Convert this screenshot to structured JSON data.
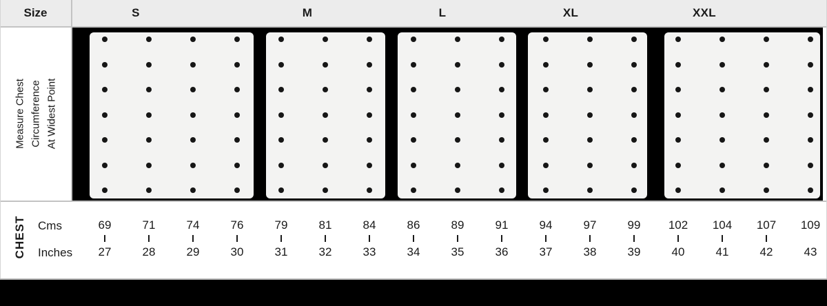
{
  "header": {
    "size_column_label": "Size",
    "size_labels": [
      "S",
      "M",
      "L",
      "XL",
      "XXL"
    ]
  },
  "measurement_note": {
    "lines": [
      "Measure Chest",
      "Circumference",
      "At Widest Point"
    ]
  },
  "chest_table": {
    "row_label": "CHEST",
    "unit_rows": [
      "Cms",
      "Inches"
    ],
    "sizes": [
      {
        "size": "S",
        "values": [
          {
            "cms": "69",
            "inches": "27"
          },
          {
            "cms": "71",
            "inches": "28"
          },
          {
            "cms": "74",
            "inches": "29"
          },
          {
            "cms": "76",
            "inches": "30"
          }
        ]
      },
      {
        "size": "M",
        "values": [
          {
            "cms": "79",
            "inches": "31"
          },
          {
            "cms": "81",
            "inches": "32"
          },
          {
            "cms": "84",
            "inches": "33"
          }
        ]
      },
      {
        "size": "L",
        "values": [
          {
            "cms": "86",
            "inches": "34"
          },
          {
            "cms": "89",
            "inches": "35"
          },
          {
            "cms": "91",
            "inches": "36"
          }
        ]
      },
      {
        "size": "XL",
        "values": [
          {
            "cms": "94",
            "inches": "37"
          },
          {
            "cms": "97",
            "inches": "38"
          },
          {
            "cms": "99",
            "inches": "39"
          }
        ]
      },
      {
        "size": "XXL",
        "values": [
          {
            "cms": "102",
            "inches": "40"
          },
          {
            "cms": "104",
            "inches": "41"
          },
          {
            "cms": "107",
            "inches": "42"
          },
          {
            "cms": "109",
            "inches": "43"
          }
        ]
      }
    ],
    "dot_rows_per_panel": 7
  },
  "chart_data": {
    "type": "table",
    "title": "Chest size chart",
    "columns": [
      "Size",
      "Chest (Cms)",
      "Chest (Inches)"
    ],
    "rows": [
      [
        "S",
        "69, 71, 74, 76",
        "27, 28, 29, 30"
      ],
      [
        "M",
        "79, 81, 84",
        "31, 32, 33"
      ],
      [
        "L",
        "86, 89, 91",
        "34, 35, 36"
      ],
      [
        "XL",
        "94, 97, 99",
        "37, 38, 39"
      ],
      [
        "XXL",
        "102, 104, 107, 109",
        "40, 41, 42, 43"
      ]
    ]
  },
  "colors": {
    "header_bg": "#ececec",
    "band_bg": "#000000",
    "panel_bg": "#f3f3f2",
    "dot": "#161616",
    "text": "#1a1a1a",
    "border": "#c3c3c3",
    "footer_bg": "#000000"
  }
}
